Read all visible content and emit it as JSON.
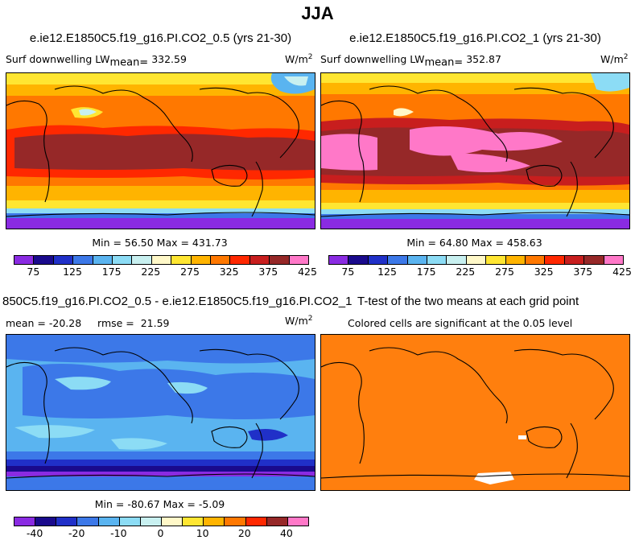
{
  "figure": {
    "title": "JJA"
  },
  "panels": [
    {
      "id": "case1",
      "title": "e.ie12.E1850C5.f19_g16.PI.CO2_0.5 (yrs 21-30)",
      "variable": "Surf downwelling LW",
      "mean_label": "mean=",
      "mean_value": "332.59",
      "units": "W/m",
      "units_exp": "2",
      "minmax": "Min =  56.50 Max = 431.73"
    },
    {
      "id": "case2",
      "title": "e.ie12.E1850C5.f19_g16.PI.CO2_1 (yrs 21-30)",
      "variable": "Surf downwelling LW",
      "mean_label": "mean=",
      "mean_value": "352.87",
      "units": "W/m",
      "units_exp": "2",
      "minmax": "Min =  64.80 Max = 458.63"
    },
    {
      "id": "diff",
      "title": "850C5.f19_g16.PI.CO2_0.5 - e.ie12.E1850C5.f19_g16.PI.CO2_1",
      "stats": "mean = -20.28     rmse =  21.59",
      "units": "W/m",
      "units_exp": "2",
      "minmax": "Min = -80.67 Max =  -5.09"
    },
    {
      "id": "ttest",
      "title": "T-test of the two means at each grid point",
      "subtitle": "Colored cells are significant at the 0.05 level"
    }
  ],
  "chart_data": [
    {
      "type": "heatmap",
      "panel": "case1",
      "description_values": {
        "min": 56.5,
        "max": 431.73,
        "mean": 332.59
      },
      "colorbar": {
        "levels": [
          75,
          125,
          175,
          225,
          275,
          325,
          375,
          425
        ],
        "tick_labels": [
          "75",
          "125",
          "175",
          "225",
          "275",
          "325",
          "375",
          "425"
        ],
        "colors": [
          "#8a2be2",
          "#1a0a8c",
          "#2030c8",
          "#3c78e8",
          "#5ab4f0",
          "#8cdcf5",
          "#c8f0f0",
          "#fff8c8",
          "#ffe632",
          "#ffb400",
          "#ff7800",
          "#ff2800",
          "#c81e1e",
          "#962828",
          "#ff78c8"
        ]
      }
    },
    {
      "type": "heatmap",
      "panel": "case2",
      "description_values": {
        "min": 64.8,
        "max": 458.63,
        "mean": 352.87
      },
      "colorbar": {
        "levels": [
          75,
          125,
          175,
          225,
          275,
          325,
          375,
          425
        ],
        "tick_labels": [
          "75",
          "125",
          "175",
          "225",
          "275",
          "325",
          "375",
          "425"
        ],
        "colors": [
          "#8a2be2",
          "#1a0a8c",
          "#2030c8",
          "#3c78e8",
          "#5ab4f0",
          "#8cdcf5",
          "#c8f0f0",
          "#fff8c8",
          "#ffe632",
          "#ffb400",
          "#ff7800",
          "#ff2800",
          "#c81e1e",
          "#962828",
          "#ff78c8"
        ]
      }
    },
    {
      "type": "heatmap",
      "panel": "diff",
      "description_values": {
        "min": -80.67,
        "max": -5.09,
        "mean": -20.28,
        "rmse": 21.59
      },
      "colorbar": {
        "levels": [
          -40,
          -20,
          -10,
          0,
          10,
          20,
          40
        ],
        "tick_labels": [
          "-40",
          "-20",
          "-10",
          "0",
          "10",
          "20",
          "40"
        ],
        "colors": [
          "#8a2be2",
          "#1a0a8c",
          "#2030c8",
          "#3c78e8",
          "#5ab4f0",
          "#8cdcf5",
          "#c8f0f0",
          "#fff8c8",
          "#ffe632",
          "#ffb400",
          "#ff7800",
          "#ff2800",
          "#962828",
          "#ff78c8"
        ]
      }
    },
    {
      "type": "heatmap",
      "panel": "ttest",
      "note": "significance mask: nearly all cells significant (orange)",
      "colors": {
        "significant": "#ff7f0e",
        "not_significant": "#ffffff"
      }
    }
  ]
}
